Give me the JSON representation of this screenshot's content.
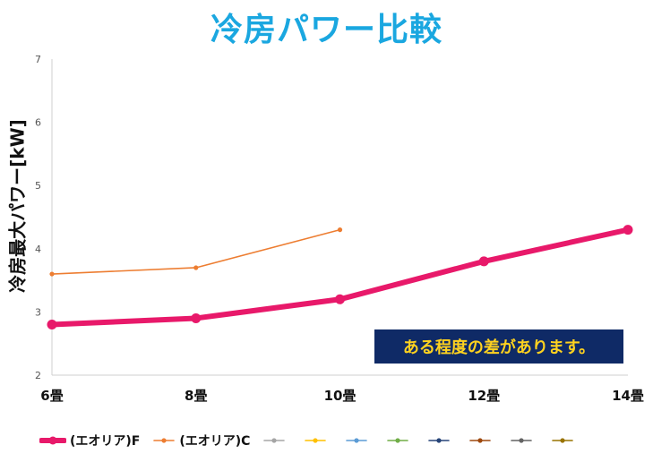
{
  "chart_data": {
    "type": "line",
    "title": "冷房パワー比較",
    "ylabel": "冷房最大パワー[kW]",
    "xlabel": "",
    "categories": [
      "6畳",
      "8畳",
      "10畳",
      "12畳",
      "14畳"
    ],
    "ylim": [
      2,
      7
    ],
    "yticks": [
      "2",
      "3",
      "4",
      "5",
      "6",
      "7"
    ],
    "grid": false,
    "legend_position": "bottom",
    "series": [
      {
        "name": "(エオリア)F",
        "values": [
          2.8,
          2.9,
          3.2,
          3.8,
          4.3
        ],
        "color": "#e8196a",
        "style": "thick"
      },
      {
        "name": "(エオリア)C",
        "values": [
          3.6,
          3.7,
          4.3,
          null,
          null
        ],
        "color": "#ed7d31",
        "style": "thin"
      }
    ],
    "empty_legend_colors": [
      "#a5a5a5",
      "#ffc000",
      "#5b9bd5",
      "#70ad47",
      "#264478",
      "#9e480e",
      "#636363",
      "#997300"
    ],
    "annotation": "ある程度の差があります。",
    "annotation_colors": {
      "background": "#0f2a66",
      "text": "#ffd21f"
    }
  }
}
